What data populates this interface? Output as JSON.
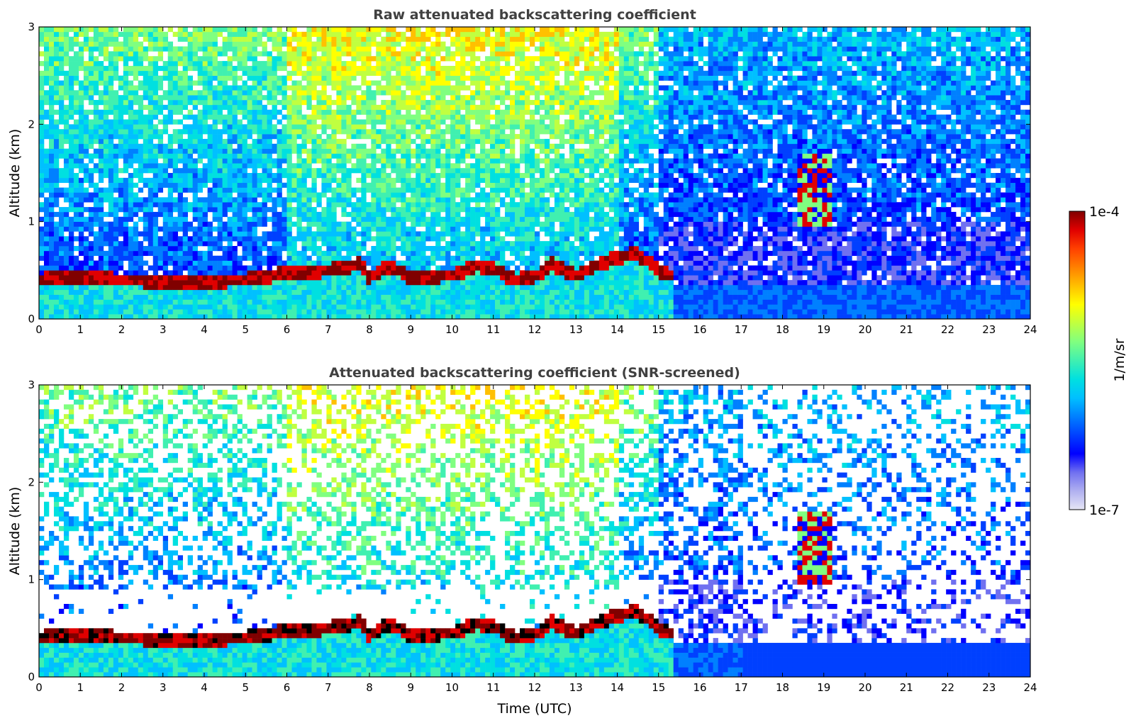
{
  "chart_data": [
    {
      "type": "heatmap",
      "title": "Raw attenuated backscattering coefficient",
      "xlabel": "",
      "ylabel": "Altitude (km)",
      "xlim": [
        0,
        24
      ],
      "ylim": [
        0,
        3
      ],
      "xticks": [
        0,
        1,
        2,
        3,
        4,
        5,
        6,
        7,
        8,
        9,
        10,
        11,
        12,
        13,
        14,
        15,
        16,
        17,
        18,
        19,
        20,
        21,
        22,
        23,
        24
      ],
      "yticks": [
        0,
        1,
        2,
        3
      ],
      "screened": false,
      "boundary_layer_top_km": [
        [
          0,
          0.45
        ],
        [
          1,
          0.48
        ],
        [
          2,
          0.45
        ],
        [
          3,
          0.44
        ],
        [
          4,
          0.44
        ],
        [
          5,
          0.45
        ],
        [
          6,
          0.52
        ],
        [
          7,
          0.55
        ],
        [
          7.8,
          0.62
        ],
        [
          8,
          0.48
        ],
        [
          8.5,
          0.6
        ],
        [
          9,
          0.48
        ],
        [
          10,
          0.5
        ],
        [
          10.6,
          0.6
        ],
        [
          11,
          0.58
        ],
        [
          11.5,
          0.45
        ],
        [
          12,
          0.48
        ],
        [
          12.4,
          0.62
        ],
        [
          13,
          0.5
        ],
        [
          13.5,
          0.6
        ],
        [
          14,
          0.68
        ],
        [
          14.5,
          0.72
        ],
        [
          15,
          0.55
        ],
        [
          15.3,
          0.5
        ]
      ],
      "cloud_event": {
        "time_utc": [
          18.3,
          19.2
        ],
        "altitude_km": [
          0.95,
          1.7
        ]
      }
    },
    {
      "type": "heatmap",
      "title": "Attenuated backscattering coefficient (SNR-screened)",
      "xlabel": "Time (UTC)",
      "ylabel": "Altitude (km)",
      "xlim": [
        0,
        24
      ],
      "ylim": [
        0,
        3
      ],
      "xticks": [
        0,
        1,
        2,
        3,
        4,
        5,
        6,
        7,
        8,
        9,
        10,
        11,
        12,
        13,
        14,
        15,
        16,
        17,
        18,
        19,
        20,
        21,
        22,
        23,
        24
      ],
      "yticks": [
        0,
        1,
        2,
        3
      ],
      "screened": true,
      "boundary_layer_top_km": [
        [
          0,
          0.45
        ],
        [
          1,
          0.48
        ],
        [
          2,
          0.45
        ],
        [
          3,
          0.44
        ],
        [
          4,
          0.44
        ],
        [
          5,
          0.45
        ],
        [
          6,
          0.52
        ],
        [
          7,
          0.55
        ],
        [
          7.8,
          0.62
        ],
        [
          8,
          0.48
        ],
        [
          8.5,
          0.6
        ],
        [
          9,
          0.48
        ],
        [
          10,
          0.5
        ],
        [
          10.6,
          0.6
        ],
        [
          11,
          0.58
        ],
        [
          11.5,
          0.45
        ],
        [
          12,
          0.48
        ],
        [
          12.4,
          0.62
        ],
        [
          13,
          0.5
        ],
        [
          13.5,
          0.6
        ],
        [
          14,
          0.68
        ],
        [
          14.5,
          0.72
        ],
        [
          15,
          0.55
        ],
        [
          15.3,
          0.5
        ]
      ],
      "cloud_event": {
        "time_utc": [
          18.3,
          19.2
        ],
        "altitude_km": [
          0.95,
          1.7
        ]
      }
    }
  ],
  "colorbar": {
    "label": "1/m/sr",
    "max_label": "1e-4",
    "min_label": "1e-7",
    "scale": "log",
    "range": [
      1e-07,
      0.0001
    ],
    "colormap": "jet",
    "colors": [
      "#e6e6f5",
      "#b0b0f0",
      "#7070f0",
      "#0000ff",
      "#0040ff",
      "#0080ff",
      "#00c0ff",
      "#00e0e0",
      "#40f0b0",
      "#80ff80",
      "#c0ff40",
      "#ffff00",
      "#ffc000",
      "#ff8000",
      "#ff4000",
      "#e00000",
      "#800000"
    ]
  }
}
